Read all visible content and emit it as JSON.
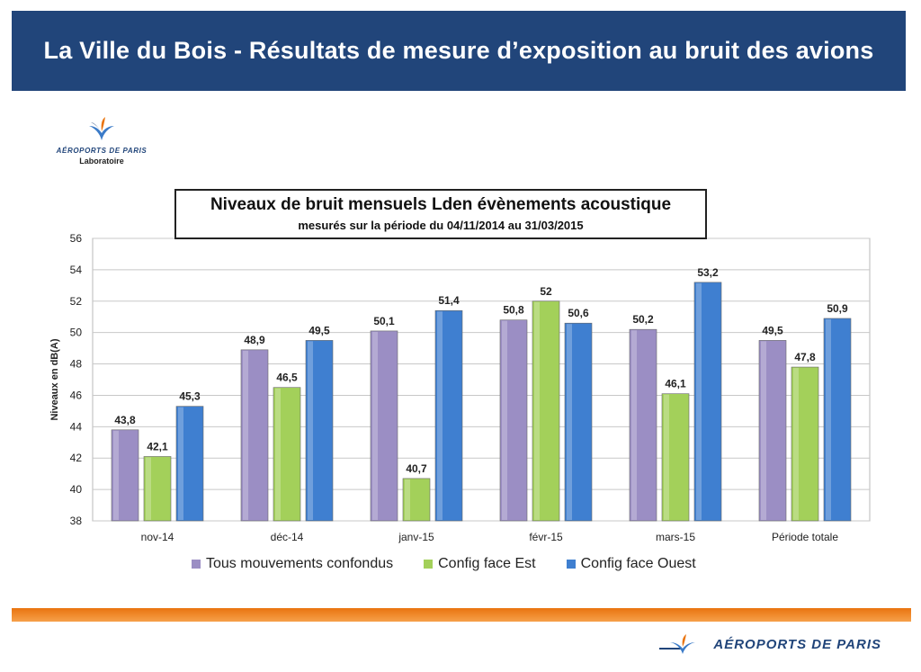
{
  "header": {
    "title": "La Ville du Bois - Résultats de mesure d’exposition au bruit des avions"
  },
  "logo_top": {
    "brand": "AÉROPORTS DE PARIS",
    "sub": "Laboratoire"
  },
  "logo_bottom": {
    "brand": "AÉROPORTS DE PARIS"
  },
  "colors": {
    "banner": "#21457a",
    "series1": "#9b8ec4",
    "series2": "#a3d05a",
    "series3": "#3f7fd0",
    "accent": "#e9740f"
  },
  "chart_data": {
    "type": "bar",
    "title": "Niveaux de bruit mensuels Lden évènements acoustique",
    "subtitle": "mesurés sur la période du 04/11/2014 au 31/03/2015",
    "ylabel": "Niveaux en dB(A)",
    "xlabel": "",
    "ylim": [
      38,
      56
    ],
    "yticks": [
      "38",
      "40",
      "42",
      "44",
      "46",
      "48",
      "50",
      "52",
      "54",
      "56"
    ],
    "grid": true,
    "legend_position": "bottom",
    "categories": [
      "nov-14",
      "déc-14",
      "janv-15",
      "févr-15",
      "mars-15",
      "Période totale"
    ],
    "series": [
      {
        "name": "Tous mouvements confondus",
        "values": [
          43.8,
          48.9,
          50.1,
          50.8,
          50.2,
          49.5
        ],
        "labels": [
          "43,8",
          "48,9",
          "50,1",
          "50,8",
          "50,2",
          "49,5"
        ]
      },
      {
        "name": "Config face Est",
        "values": [
          42.1,
          46.5,
          40.7,
          52,
          46.1,
          47.8
        ],
        "labels": [
          "42,1",
          "46,5",
          "40,7",
          "52",
          "46,1",
          "47,8"
        ]
      },
      {
        "name": "Config face Ouest",
        "values": [
          45.3,
          49.5,
          51.4,
          50.6,
          53.2,
          50.9
        ],
        "labels": [
          "45,3",
          "49,5",
          "51,4",
          "50,6",
          "53,2",
          "50,9"
        ]
      }
    ]
  }
}
